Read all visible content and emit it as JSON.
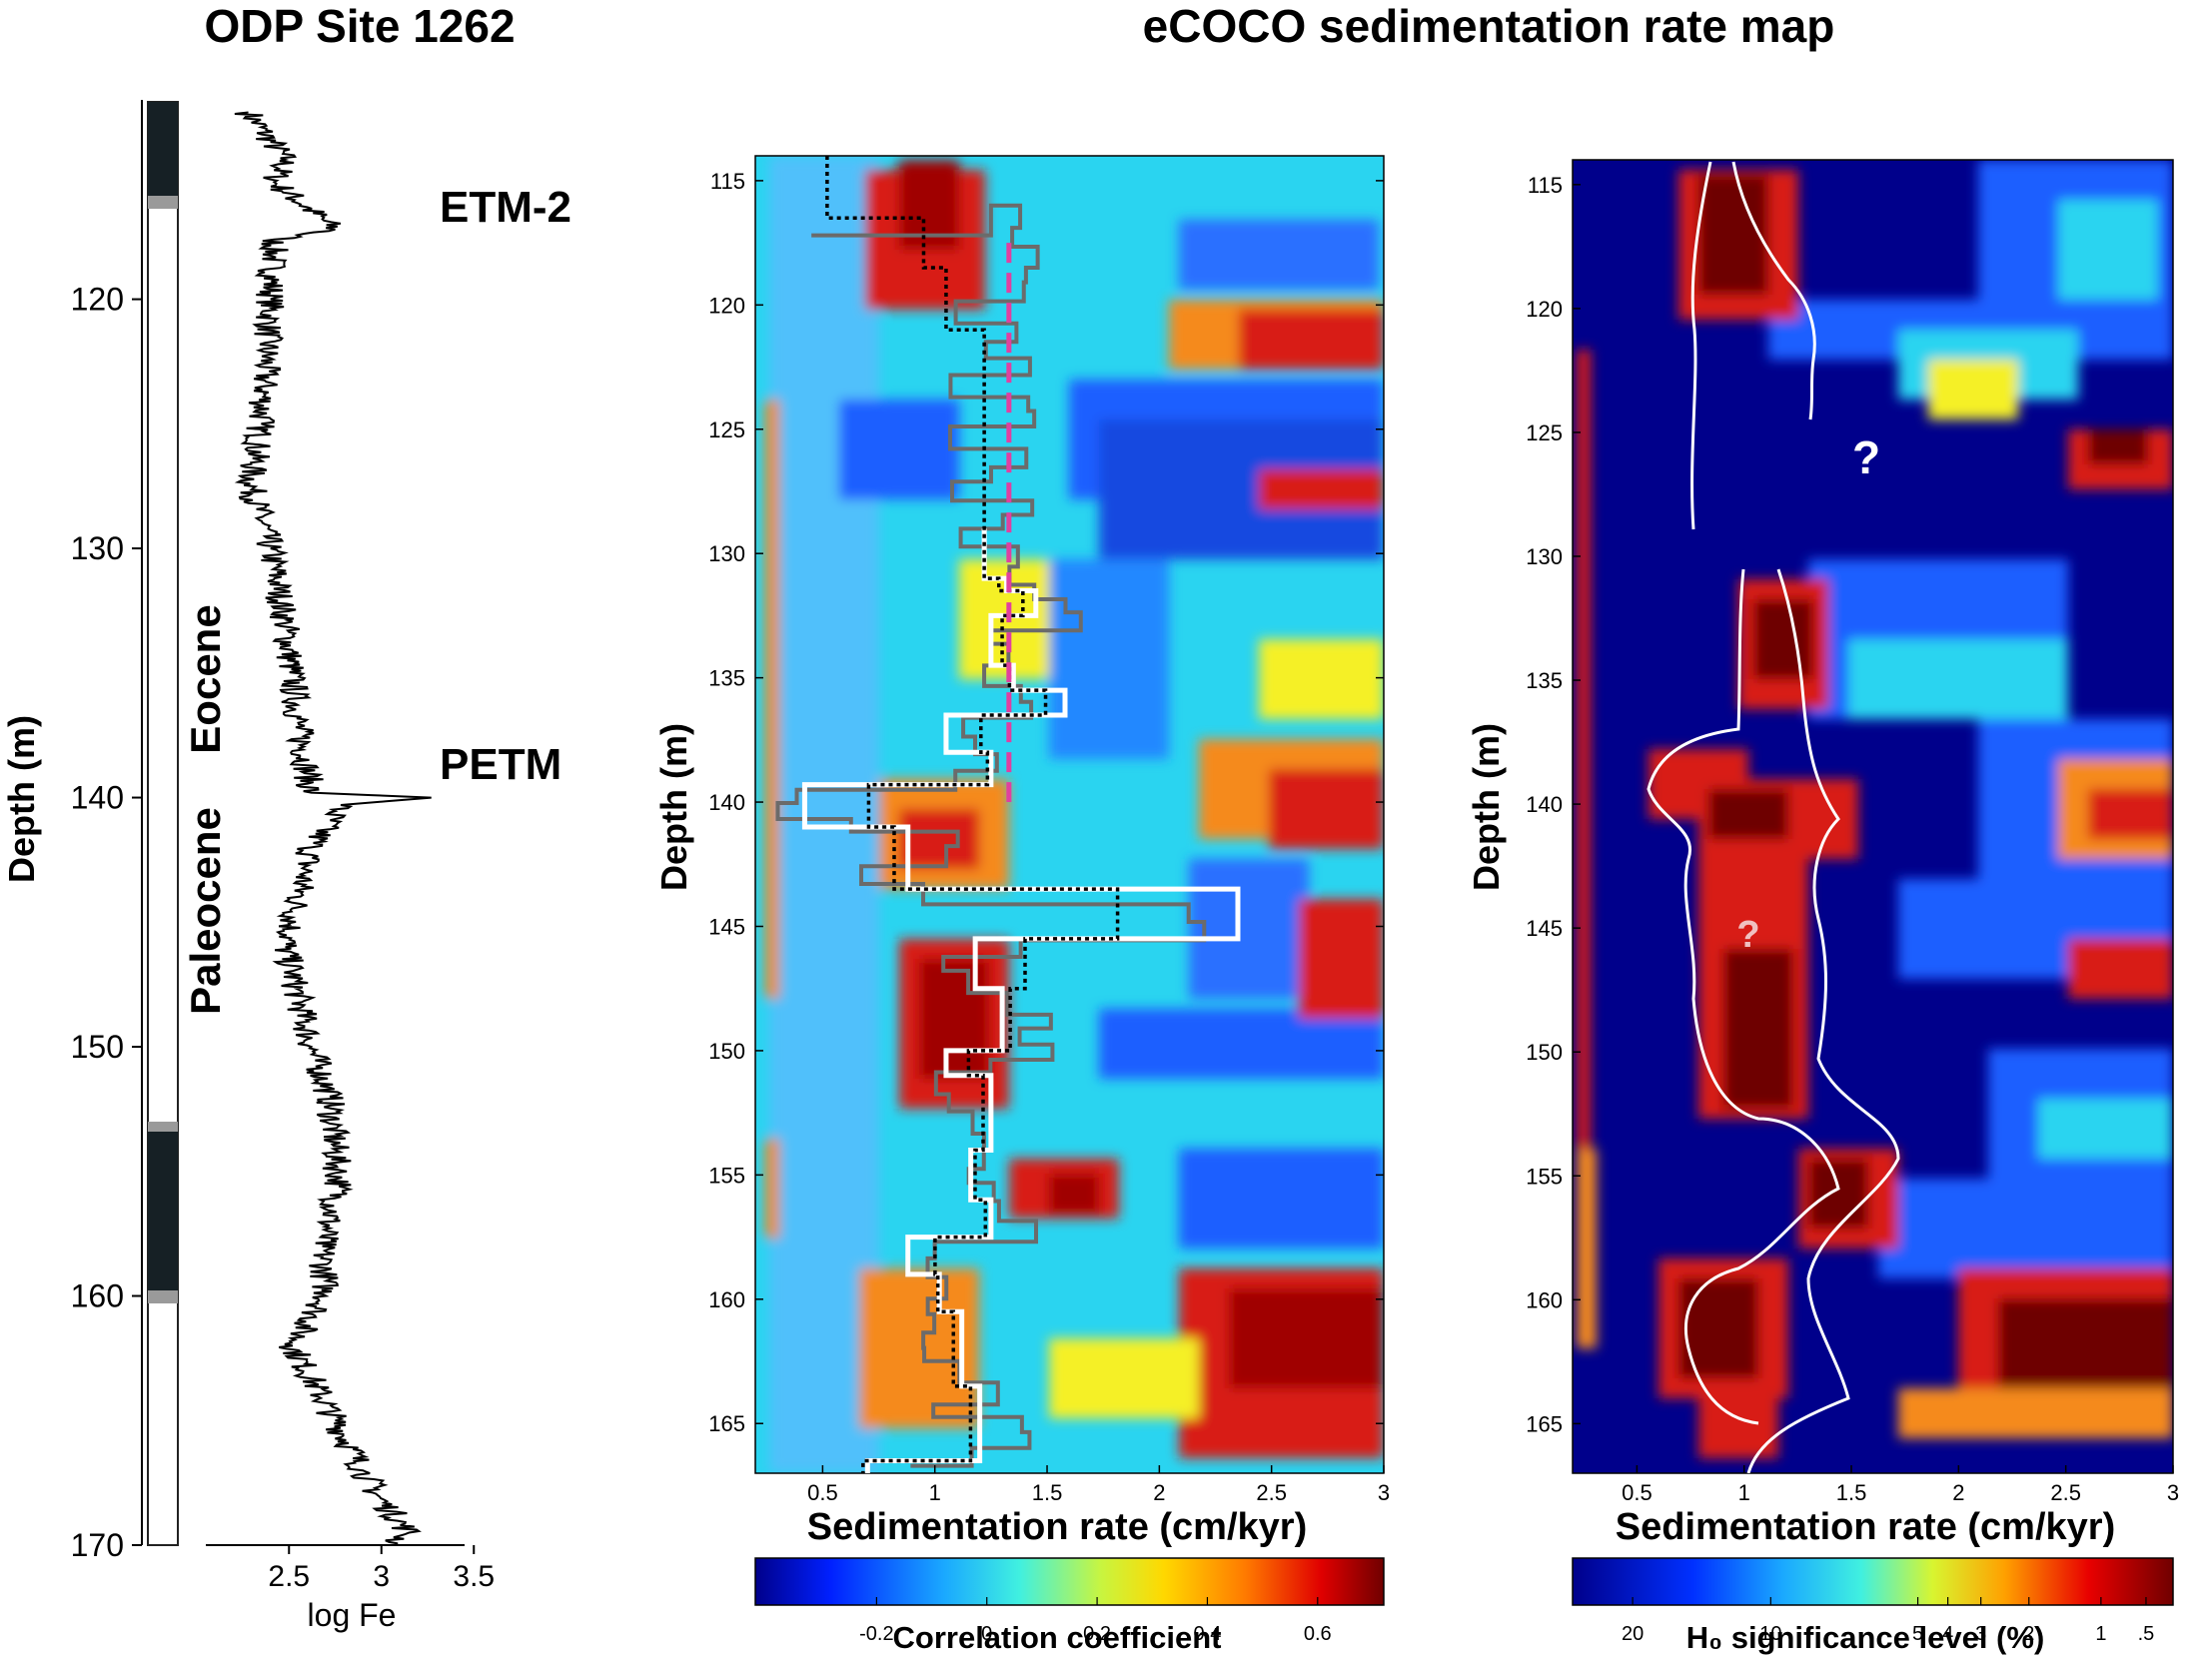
{
  "titles": {
    "left": "ODP Site 1262",
    "right": "eCOCO sedimentation rate map"
  },
  "colors": {
    "dark_blue": "#00008b",
    "blue": "#1a5fff",
    "cyan": "#2ad4f0",
    "yellow": "#f5f026",
    "orange": "#f58a1e",
    "red": "#d81a14",
    "dark_red": "#6e0000",
    "magenta": "#e040a0",
    "dark_gray_step": "#6b6b6b"
  },
  "chart_data": [
    {
      "type": "line",
      "name": "log-fe-core",
      "xlabel": "log Fe",
      "ylabel": "Depth (m)",
      "xlim": [
        2.05,
        3.45
      ],
      "ylim": [
        170,
        112
      ],
      "x_ticks": [
        "2.5",
        "3",
        "3.5"
      ],
      "y_ticks": [
        "120",
        "130",
        "140",
        "150",
        "160",
        "170"
      ],
      "epochs": [
        "Eocene",
        "Paleocene"
      ],
      "annotations": [
        {
          "text": "ETM-2",
          "depth": 117.2
        },
        {
          "text": "PETM",
          "depth": 140
        }
      ],
      "series_points": [
        {
          "depth": 112.5,
          "logfe": 2.28
        },
        {
          "depth": 114.4,
          "logfe": 2.48
        },
        {
          "depth": 115.3,
          "logfe": 2.42
        },
        {
          "depth": 117.2,
          "logfe": 2.75
        },
        {
          "depth": 117.6,
          "logfe": 2.42
        },
        {
          "depth": 120,
          "logfe": 2.4
        },
        {
          "depth": 125,
          "logfe": 2.35
        },
        {
          "depth": 127.4,
          "logfe": 2.29
        },
        {
          "depth": 130,
          "logfe": 2.4
        },
        {
          "depth": 133,
          "logfe": 2.48
        },
        {
          "depth": 137,
          "logfe": 2.55
        },
        {
          "depth": 139.8,
          "logfe": 2.62
        },
        {
          "depth": 140.0,
          "logfe": 3.27
        },
        {
          "depth": 140.3,
          "logfe": 2.78
        },
        {
          "depth": 142,
          "logfe": 2.62
        },
        {
          "depth": 146,
          "logfe": 2.48
        },
        {
          "depth": 150,
          "logfe": 2.62
        },
        {
          "depth": 152,
          "logfe": 2.72
        },
        {
          "depth": 155.6,
          "logfe": 2.77
        },
        {
          "depth": 158,
          "logfe": 2.68
        },
        {
          "depth": 160,
          "logfe": 2.7
        },
        {
          "depth": 162,
          "logfe": 2.52
        },
        {
          "depth": 165,
          "logfe": 2.75
        },
        {
          "depth": 167,
          "logfe": 2.9
        },
        {
          "depth": 168,
          "logfe": 2.98
        },
        {
          "depth": 169.5,
          "logfe": 3.15
        },
        {
          "depth": 170,
          "logfe": 3.05
        }
      ]
    },
    {
      "type": "heatmap",
      "name": "correlation-map",
      "xlabel": "Sedimentation rate (cm/kyr)",
      "ylabel": "Depth (m)",
      "xlim": [
        0.2,
        3.0
      ],
      "ylim": [
        167,
        114
      ],
      "x_ticks": [
        "0.5",
        "1",
        "1.5",
        "2",
        "2.5",
        "3"
      ],
      "y_ticks": [
        "115",
        "120",
        "125",
        "130",
        "135",
        "140",
        "145",
        "150",
        "155",
        "160",
        "165"
      ],
      "colorbar": {
        "label": "Correlation coefficient",
        "ticks": [
          "-0.2",
          "0",
          "0.2",
          "0.4",
          "0.6"
        ],
        "range": [
          -0.42,
          0.72
        ]
      },
      "reference_line_rate": 1.33,
      "white_step_path": [
        {
          "depth": 129,
          "rate": 1.22
        },
        {
          "depth": 131,
          "rate": 1.32
        },
        {
          "depth": 131.5,
          "rate": 1.45
        },
        {
          "depth": 132.5,
          "rate": 1.25
        },
        {
          "depth": 134.5,
          "rate": 1.35
        },
        {
          "depth": 135.5,
          "rate": 1.58
        },
        {
          "depth": 136.5,
          "rate": 1.05
        },
        {
          "depth": 138,
          "rate": 1.25
        },
        {
          "depth": 139.3,
          "rate": 0.42
        },
        {
          "depth": 141,
          "rate": 0.88
        },
        {
          "depth": 143.5,
          "rate": 2.35
        },
        {
          "depth": 145.5,
          "rate": 1.18
        },
        {
          "depth": 147.5,
          "rate": 1.3
        },
        {
          "depth": 150,
          "rate": 1.05
        },
        {
          "depth": 151,
          "rate": 1.25
        },
        {
          "depth": 154,
          "rate": 1.16
        },
        {
          "depth": 156,
          "rate": 1.25
        },
        {
          "depth": 157.5,
          "rate": 0.88
        },
        {
          "depth": 159,
          "rate": 1.02
        },
        {
          "depth": 160.5,
          "rate": 1.12
        },
        {
          "depth": 163.5,
          "rate": 1.2
        },
        {
          "depth": 166.5,
          "rate": 0.7
        }
      ]
    },
    {
      "type": "heatmap",
      "name": "significance-map",
      "xlabel": "Sedimentation rate (cm/kyr)",
      "ylabel": "Depth (m)",
      "xlim": [
        0.2,
        3.0
      ],
      "ylim": [
        167,
        114
      ],
      "x_ticks": [
        "0.5",
        "1",
        "1.5",
        "2",
        "2.5",
        "3"
      ],
      "y_ticks": [
        "115",
        "120",
        "125",
        "130",
        "135",
        "140",
        "145",
        "150",
        "155",
        "160",
        "165"
      ],
      "colorbar": {
        "label": "H₀ significance level (%)",
        "ticks": [
          "20",
          "10",
          "5",
          "4",
          "3",
          "2",
          "1",
          ".5"
        ]
      },
      "question_marks": [
        {
          "text": "?",
          "depth": 126.1,
          "rate": 1.57
        },
        {
          "text": "?",
          "depth": 145.2,
          "rate": 1.02
        }
      ]
    }
  ]
}
